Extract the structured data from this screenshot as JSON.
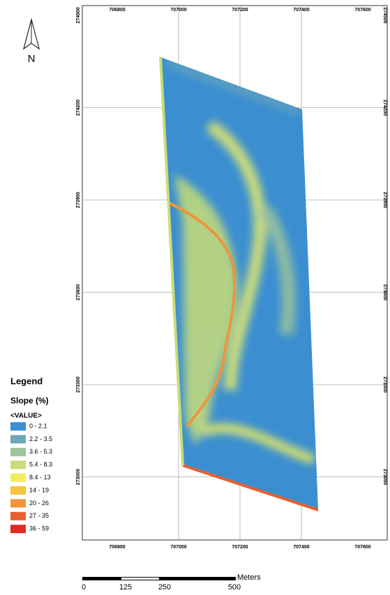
{
  "north_arrow": {
    "label": "N"
  },
  "grid": {
    "x_labels": [
      "706800",
      "707000",
      "707200",
      "707400",
      "707600"
    ],
    "y_labels": [
      "274500",
      "274200",
      "273900",
      "273600",
      "273300",
      "273000"
    ]
  },
  "legend": {
    "title": "Legend",
    "field": "Slope (%)",
    "subtitle": "<VALUE>",
    "classes": [
      {
        "label": "0 - 2.1",
        "color": "#3b8fd1"
      },
      {
        "label": "2.2 - 3.5",
        "color": "#6fa7b8"
      },
      {
        "label": "3.6 - 5.3",
        "color": "#9dc39b"
      },
      {
        "label": "5.4 - 8.3",
        "color": "#c8dd78"
      },
      {
        "label": "8.4 - 13",
        "color": "#f2ee5b"
      },
      {
        "label": "14 - 19",
        "color": "#f6c441"
      },
      {
        "label": "20 - 26",
        "color": "#f0953a"
      },
      {
        "label": "27 - 35",
        "color": "#e8602e"
      },
      {
        "label": "36 - 59",
        "color": "#e02a22"
      }
    ]
  },
  "scale_bar": {
    "unit": "Meters",
    "labels": [
      "0",
      "125",
      "250",
      "500"
    ]
  }
}
